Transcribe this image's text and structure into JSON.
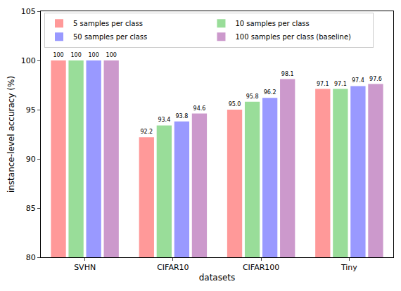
{
  "chart_data": {
    "type": "bar",
    "x_label": "datasets",
    "y_label": "instance-level accuracy (%)",
    "categories": [
      "SVHN",
      "CIFAR10",
      "CIFAR100",
      "Tiny"
    ],
    "series": [
      {
        "name": "5 samples per class",
        "color": "#ff9999",
        "values": [
          100,
          92.2,
          95.0,
          97.1
        ],
        "value_labels": [
          "100",
          "92.2",
          "95.0",
          "97.1"
        ]
      },
      {
        "name": "10 samples per class",
        "color": "#99dd99",
        "values": [
          100,
          93.4,
          95.8,
          97.1
        ],
        "value_labels": [
          "100",
          "93.4",
          "95.8",
          "97.1"
        ]
      },
      {
        "name": "50 samples per class",
        "color": "#9999ff",
        "values": [
          100,
          93.8,
          96.2,
          97.4
        ],
        "value_labels": [
          "100",
          "93.8",
          "96.2",
          "97.4"
        ]
      },
      {
        "name": "100 samples per class (baseline)",
        "color": "#cc99cc",
        "values": [
          100,
          94.6,
          98.1,
          97.6
        ],
        "value_labels": [
          "100",
          "94.6",
          "98.1",
          "97.6"
        ]
      }
    ],
    "ylim": [
      80,
      105
    ],
    "yticks": [
      80,
      85,
      90,
      95,
      100,
      105
    ],
    "grid": false,
    "legend": "upper left",
    "data_labels": true
  }
}
